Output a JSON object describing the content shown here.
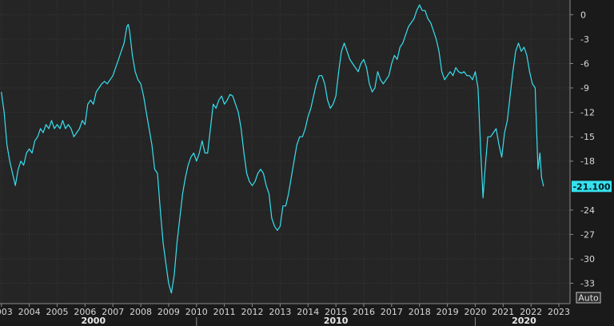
{
  "colors": {
    "background": "#1a1a1a",
    "plot_background": "#252526",
    "grid": "#3a3a3a",
    "line": "#36e0ee",
    "text": "#d8d8d8"
  },
  "auto_label": "Auto",
  "last_value_label": "-21.100",
  "chart_data": {
    "type": "line",
    "title": "",
    "xlabel": "",
    "ylabel": "",
    "ylim": [
      -35.5,
      1.8
    ],
    "xlim": [
      2002.95,
      2023.4
    ],
    "y_ticks": [
      0,
      -3,
      -6,
      -9,
      -12,
      -15,
      -18,
      -24,
      -27,
      -30,
      -33
    ],
    "y_tick_labels": [
      "0",
      "-3",
      "-6",
      "-9",
      "-12",
      "-15",
      "-18",
      "-24",
      "-27",
      "-30",
      "-33"
    ],
    "x_ticks": [
      2003,
      2004,
      2005,
      2006,
      2007,
      2008,
      2009,
      2010,
      2011,
      2012,
      2013,
      2014,
      2015,
      2016,
      2017,
      2018,
      2019,
      2020,
      2021,
      2022,
      2023
    ],
    "x_tick_labels": [
      "2003",
      "2004",
      "2005",
      "2006",
      "2007",
      "2008",
      "2009",
      "2010",
      "2011",
      "2012",
      "2013",
      "2014",
      "2015",
      "2016",
      "2017",
      "2018",
      "2019",
      "2020",
      "2021",
      "2022",
      "2023"
    ],
    "era_labels": [
      {
        "label": "2000",
        "x": 2006.3
      },
      {
        "label": "2010",
        "x": 2015.0
      },
      {
        "label": "2020",
        "x": 2021.75
      }
    ],
    "era_dividers": [
      2010.0,
      2020.0
    ],
    "grid": true,
    "legend": "none",
    "series": [
      {
        "last_value": -21.1,
        "points": [
          [
            2003.0,
            -9.5
          ],
          [
            2003.1,
            -12
          ],
          [
            2003.2,
            -16
          ],
          [
            2003.3,
            -18
          ],
          [
            2003.4,
            -19.5
          ],
          [
            2003.5,
            -21
          ],
          [
            2003.6,
            -19
          ],
          [
            2003.7,
            -18
          ],
          [
            2003.8,
            -18.5
          ],
          [
            2003.9,
            -17
          ],
          [
            2004.0,
            -16.5
          ],
          [
            2004.1,
            -17
          ],
          [
            2004.2,
            -15.5
          ],
          [
            2004.3,
            -15
          ],
          [
            2004.4,
            -14
          ],
          [
            2004.5,
            -14.5
          ],
          [
            2004.6,
            -13.5
          ],
          [
            2004.7,
            -14
          ],
          [
            2004.8,
            -13
          ],
          [
            2004.9,
            -14
          ],
          [
            2005.0,
            -13.5
          ],
          [
            2005.1,
            -14
          ],
          [
            2005.2,
            -13
          ],
          [
            2005.3,
            -14
          ],
          [
            2005.4,
            -13.5
          ],
          [
            2005.5,
            -14
          ],
          [
            2005.6,
            -15
          ],
          [
            2005.7,
            -14.5
          ],
          [
            2005.8,
            -14
          ],
          [
            2005.9,
            -13
          ],
          [
            2006.0,
            -13.5
          ],
          [
            2006.1,
            -11
          ],
          [
            2006.2,
            -10.5
          ],
          [
            2006.3,
            -11
          ],
          [
            2006.4,
            -9.5
          ],
          [
            2006.5,
            -9
          ],
          [
            2006.6,
            -8.5
          ],
          [
            2006.7,
            -8.2
          ],
          [
            2006.8,
            -8.5
          ],
          [
            2006.9,
            -8
          ],
          [
            2007.0,
            -7.5
          ],
          [
            2007.1,
            -6.5
          ],
          [
            2007.2,
            -5.5
          ],
          [
            2007.3,
            -4.5
          ],
          [
            2007.4,
            -3.5
          ],
          [
            2007.5,
            -1.5
          ],
          [
            2007.55,
            -1.2
          ],
          [
            2007.6,
            -2
          ],
          [
            2007.7,
            -5
          ],
          [
            2007.8,
            -7
          ],
          [
            2007.9,
            -8
          ],
          [
            2008.0,
            -8.5
          ],
          [
            2008.1,
            -10
          ],
          [
            2008.2,
            -12
          ],
          [
            2008.3,
            -14
          ],
          [
            2008.4,
            -16
          ],
          [
            2008.5,
            -19
          ],
          [
            2008.6,
            -19.5
          ],
          [
            2008.7,
            -24
          ],
          [
            2008.8,
            -28
          ],
          [
            2008.9,
            -30.5
          ],
          [
            2009.0,
            -33
          ],
          [
            2009.1,
            -34.2
          ],
          [
            2009.2,
            -32
          ],
          [
            2009.3,
            -28
          ],
          [
            2009.4,
            -25
          ],
          [
            2009.5,
            -22
          ],
          [
            2009.6,
            -20
          ],
          [
            2009.7,
            -18.5
          ],
          [
            2009.8,
            -17.5
          ],
          [
            2009.9,
            -17
          ],
          [
            2010.0,
            -18
          ],
          [
            2010.1,
            -17
          ],
          [
            2010.2,
            -15.5
          ],
          [
            2010.3,
            -17
          ],
          [
            2010.4,
            -17
          ],
          [
            2010.5,
            -14
          ],
          [
            2010.6,
            -11
          ],
          [
            2010.7,
            -11.5
          ],
          [
            2010.8,
            -10.5
          ],
          [
            2010.9,
            -10
          ],
          [
            2011.0,
            -11
          ],
          [
            2011.1,
            -10.5
          ],
          [
            2011.2,
            -9.8
          ],
          [
            2011.3,
            -10
          ],
          [
            2011.4,
            -11
          ],
          [
            2011.5,
            -12
          ],
          [
            2011.6,
            -14
          ],
          [
            2011.7,
            -17
          ],
          [
            2011.8,
            -19.5
          ],
          [
            2011.9,
            -20.5
          ],
          [
            2012.0,
            -21
          ],
          [
            2012.1,
            -20.5
          ],
          [
            2012.2,
            -19.5
          ],
          [
            2012.3,
            -19
          ],
          [
            2012.4,
            -19.5
          ],
          [
            2012.5,
            -21
          ],
          [
            2012.6,
            -22
          ],
          [
            2012.7,
            -25
          ],
          [
            2012.8,
            -26
          ],
          [
            2012.9,
            -26.5
          ],
          [
            2013.0,
            -26
          ],
          [
            2013.1,
            -23.5
          ],
          [
            2013.2,
            -23.5
          ],
          [
            2013.3,
            -22
          ],
          [
            2013.4,
            -20
          ],
          [
            2013.5,
            -18
          ],
          [
            2013.6,
            -16
          ],
          [
            2013.7,
            -15
          ],
          [
            2013.8,
            -15
          ],
          [
            2013.9,
            -14
          ],
          [
            2014.0,
            -12.5
          ],
          [
            2014.1,
            -11.5
          ],
          [
            2014.2,
            -10
          ],
          [
            2014.3,
            -8.5
          ],
          [
            2014.4,
            -7.5
          ],
          [
            2014.5,
            -7.5
          ],
          [
            2014.6,
            -8.5
          ],
          [
            2014.7,
            -10.5
          ],
          [
            2014.8,
            -11.5
          ],
          [
            2014.9,
            -11
          ],
          [
            2015.0,
            -10
          ],
          [
            2015.1,
            -7
          ],
          [
            2015.2,
            -4.5
          ],
          [
            2015.3,
            -3.5
          ],
          [
            2015.4,
            -4.5
          ],
          [
            2015.5,
            -5.5
          ],
          [
            2015.6,
            -6
          ],
          [
            2015.7,
            -6.5
          ],
          [
            2015.8,
            -7
          ],
          [
            2015.9,
            -6
          ],
          [
            2016.0,
            -5.5
          ],
          [
            2016.1,
            -6.5
          ],
          [
            2016.2,
            -8.5
          ],
          [
            2016.3,
            -9.5
          ],
          [
            2016.4,
            -9
          ],
          [
            2016.5,
            -7
          ],
          [
            2016.6,
            -8
          ],
          [
            2016.7,
            -8.5
          ],
          [
            2016.8,
            -8
          ],
          [
            2016.9,
            -7.5
          ],
          [
            2017.0,
            -6
          ],
          [
            2017.1,
            -5
          ],
          [
            2017.2,
            -5.5
          ],
          [
            2017.3,
            -4
          ],
          [
            2017.4,
            -3.5
          ],
          [
            2017.5,
            -2.5
          ],
          [
            2017.6,
            -1.5
          ],
          [
            2017.7,
            -1
          ],
          [
            2017.8,
            -0.5
          ],
          [
            2017.9,
            0.5
          ],
          [
            2018.0,
            1.2
          ],
          [
            2018.1,
            0.5
          ],
          [
            2018.2,
            0.5
          ],
          [
            2018.3,
            -0.5
          ],
          [
            2018.4,
            -1
          ],
          [
            2018.5,
            -2
          ],
          [
            2018.6,
            -3
          ],
          [
            2018.7,
            -4.5
          ],
          [
            2018.8,
            -7
          ],
          [
            2018.9,
            -8
          ],
          [
            2019.0,
            -7.5
          ],
          [
            2019.1,
            -7
          ],
          [
            2019.2,
            -7.5
          ],
          [
            2019.3,
            -6.5
          ],
          [
            2019.4,
            -7
          ],
          [
            2019.5,
            -7.2
          ],
          [
            2019.6,
            -7
          ],
          [
            2019.7,
            -7.5
          ],
          [
            2019.8,
            -7.5
          ],
          [
            2019.9,
            -8
          ],
          [
            2020.0,
            -7
          ],
          [
            2020.1,
            -9
          ],
          [
            2020.2,
            -17
          ],
          [
            2020.28,
            -22.5
          ],
          [
            2020.35,
            -19
          ],
          [
            2020.45,
            -15
          ],
          [
            2020.55,
            -15
          ],
          [
            2020.65,
            -14.5
          ],
          [
            2020.75,
            -14
          ],
          [
            2020.85,
            -16
          ],
          [
            2020.95,
            -17.5
          ],
          [
            2021.05,
            -14.5
          ],
          [
            2021.15,
            -13
          ],
          [
            2021.25,
            -10
          ],
          [
            2021.35,
            -7
          ],
          [
            2021.45,
            -4.5
          ],
          [
            2021.55,
            -3.5
          ],
          [
            2021.65,
            -4.5
          ],
          [
            2021.75,
            -4
          ],
          [
            2021.85,
            -5
          ],
          [
            2021.95,
            -7
          ],
          [
            2022.05,
            -8.5
          ],
          [
            2022.15,
            -9
          ],
          [
            2022.25,
            -19
          ],
          [
            2022.32,
            -17
          ],
          [
            2022.38,
            -20
          ],
          [
            2022.45,
            -21.1
          ]
        ]
      }
    ]
  }
}
